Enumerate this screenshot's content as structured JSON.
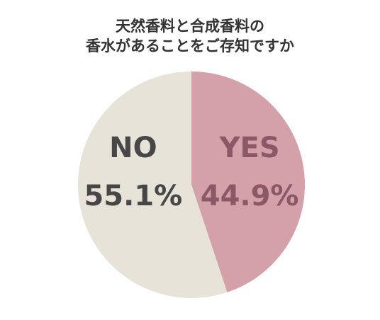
{
  "chart_data": {
    "type": "pie",
    "title": [
      "天然香料と合成香料の",
      "香水があることをご存知ですか"
    ],
    "categories": [
      "YES",
      "NO"
    ],
    "values": [
      44.9,
      55.1
    ],
    "value_labels": [
      "44.9%",
      "55.1%"
    ],
    "colors": [
      "#d4a0a9",
      "#e8e3d9"
    ],
    "label_colors": [
      "#8a5866",
      "#474747"
    ]
  }
}
